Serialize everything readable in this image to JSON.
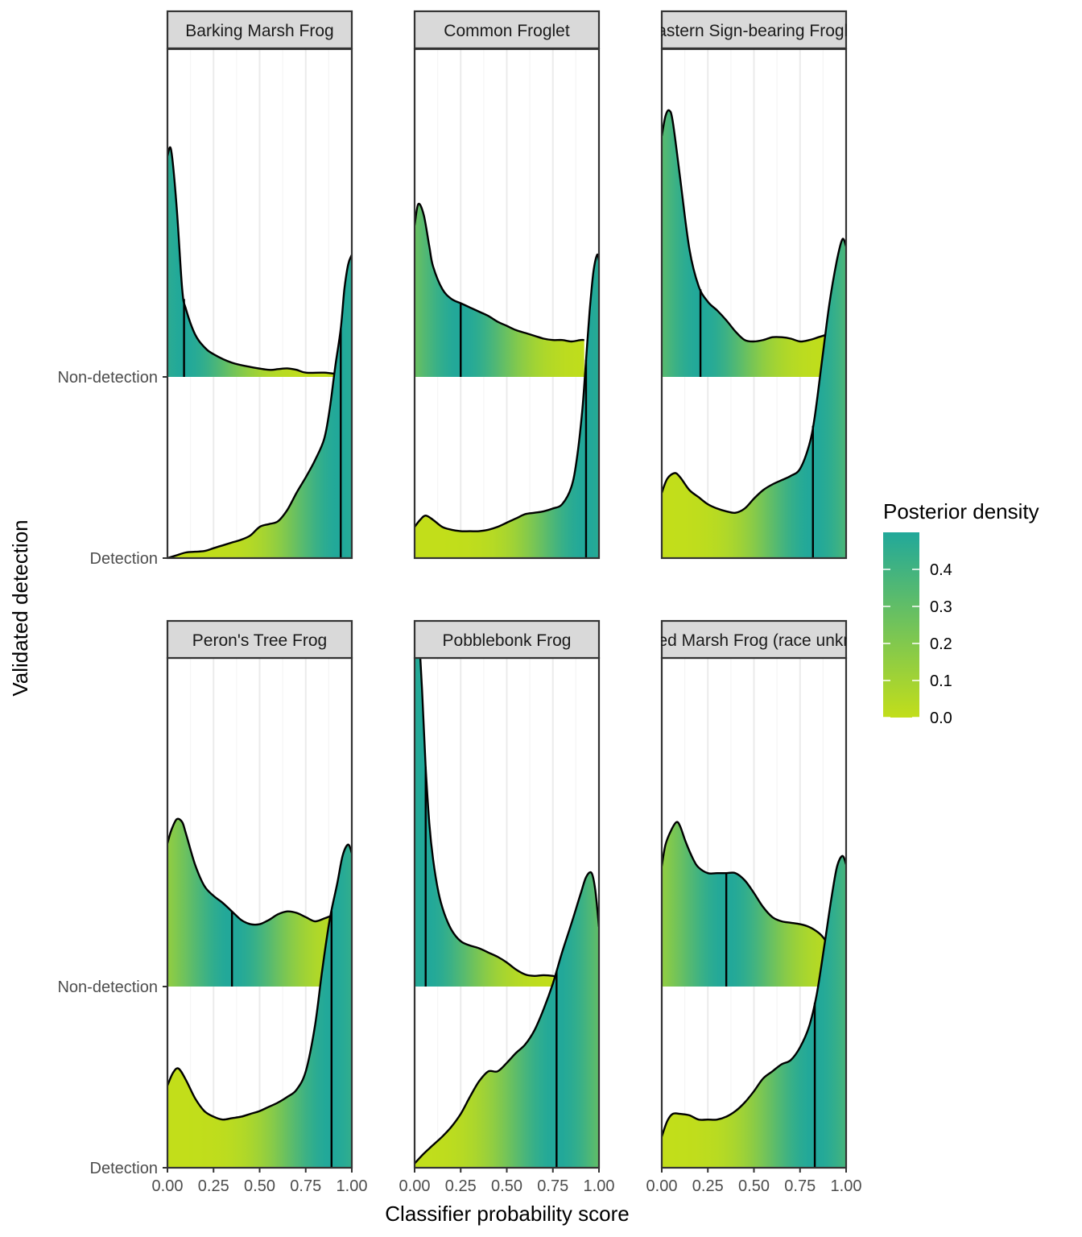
{
  "chart_data": {
    "type": "density_ridgeline_facets",
    "xlabel": "Classifier probability score",
    "ylabel": "Validated detection",
    "x_ticks": [
      "0.00",
      "0.25",
      "0.50",
      "0.75",
      "1.00"
    ],
    "x_tick_values": [
      0,
      0.25,
      0.5,
      0.75,
      1
    ],
    "xlim": [
      0,
      1
    ],
    "y_categories": [
      "Detection",
      "Non-detection"
    ],
    "grid": "vertical major and minor gridlines",
    "legend": {
      "title": "Posterior density",
      "placement": "right",
      "range": [
        0,
        0.5
      ],
      "ticks": [
        "0.0",
        "0.1",
        "0.2",
        "0.3",
        "0.4"
      ],
      "tick_values": [
        0,
        0.1,
        0.2,
        0.3,
        0.4
      ],
      "color_low": "#c2de1a",
      "color_high": "#21a89a"
    },
    "facets": [
      {
        "name": "Barking Marsh Frog",
        "ridges": [
          {
            "category": "Non-detection",
            "vline": 0.09,
            "x": [
              0,
              0.02,
              0.05,
              0.08,
              0.1,
              0.15,
              0.2,
              0.25,
              0.35,
              0.45,
              0.55,
              0.6,
              0.65,
              0.7,
              0.75,
              0.85,
              0.92
            ],
            "density": [
              1.56,
              1.6,
              1.2,
              0.62,
              0.48,
              0.3,
              0.21,
              0.16,
              0.1,
              0.07,
              0.05,
              0.055,
              0.06,
              0.05,
              0.03,
              0.03,
              0.02
            ]
          },
          {
            "category": "Detection",
            "vline": 0.94,
            "x": [
              0,
              0.05,
              0.1,
              0.15,
              0.2,
              0.25,
              0.3,
              0.35,
              0.4,
              0.45,
              0.5,
              0.55,
              0.6,
              0.65,
              0.7,
              0.75,
              0.8,
              0.85,
              0.88,
              0.91,
              0.94,
              0.96,
              0.98,
              1.0
            ],
            "density": [
              0.0,
              0.02,
              0.04,
              0.045,
              0.05,
              0.07,
              0.09,
              0.11,
              0.13,
              0.16,
              0.22,
              0.24,
              0.26,
              0.34,
              0.46,
              0.57,
              0.69,
              0.84,
              1.05,
              1.35,
              1.62,
              1.9,
              2.07,
              2.14
            ]
          }
        ]
      },
      {
        "name": "Common Froglet",
        "ridges": [
          {
            "category": "Non-detection",
            "vline": 0.25,
            "x": [
              0,
              0.02,
              0.05,
              0.08,
              0.1,
              0.15,
              0.2,
              0.25,
              0.3,
              0.35,
              0.4,
              0.45,
              0.5,
              0.55,
              0.6,
              0.65,
              0.7,
              0.75,
              0.8,
              0.85,
              0.9,
              0.92
            ],
            "density": [
              1.07,
              1.22,
              1.14,
              0.92,
              0.78,
              0.62,
              0.55,
              0.52,
              0.49,
              0.46,
              0.43,
              0.39,
              0.36,
              0.33,
              0.31,
              0.29,
              0.27,
              0.26,
              0.26,
              0.25,
              0.26,
              0.26
            ]
          },
          {
            "category": "Detection",
            "vline": 0.93,
            "x": [
              0,
              0.03,
              0.06,
              0.1,
              0.15,
              0.2,
              0.25,
              0.3,
              0.35,
              0.4,
              0.45,
              0.5,
              0.55,
              0.6,
              0.65,
              0.7,
              0.75,
              0.8,
              0.85,
              0.88,
              0.91,
              0.93,
              0.95,
              0.97,
              0.99,
              1.0
            ],
            "density": [
              0.22,
              0.27,
              0.3,
              0.27,
              0.22,
              0.2,
              0.19,
              0.19,
              0.19,
              0.2,
              0.22,
              0.25,
              0.28,
              0.31,
              0.32,
              0.33,
              0.35,
              0.38,
              0.5,
              0.7,
              1.05,
              1.4,
              1.75,
              2.02,
              2.14,
              2.1
            ]
          }
        ]
      },
      {
        "name": "Eastern Sign-bearing Froglet",
        "ridges": [
          {
            "category": "Non-detection",
            "vline": 0.21,
            "x": [
              0,
              0.02,
              0.04,
              0.06,
              0.1,
              0.15,
              0.2,
              0.25,
              0.3,
              0.35,
              0.4,
              0.45,
              0.5,
              0.55,
              0.6,
              0.65,
              0.7,
              0.75,
              0.8,
              0.85,
              0.9
            ],
            "density": [
              1.7,
              1.84,
              1.88,
              1.8,
              1.4,
              0.9,
              0.64,
              0.53,
              0.47,
              0.4,
              0.32,
              0.26,
              0.25,
              0.26,
              0.28,
              0.28,
              0.27,
              0.25,
              0.26,
              0.28,
              0.3
            ]
          },
          {
            "category": "Detection",
            "vline": 0.82,
            "x": [
              0,
              0.03,
              0.07,
              0.1,
              0.15,
              0.2,
              0.25,
              0.3,
              0.35,
              0.4,
              0.45,
              0.5,
              0.55,
              0.6,
              0.65,
              0.7,
              0.75,
              0.8,
              0.83,
              0.87,
              0.91,
              0.95,
              0.98,
              1.0
            ],
            "density": [
              0.46,
              0.56,
              0.6,
              0.57,
              0.48,
              0.43,
              0.38,
              0.35,
              0.33,
              0.32,
              0.35,
              0.42,
              0.48,
              0.52,
              0.55,
              0.58,
              0.63,
              0.8,
              1.0,
              1.4,
              1.8,
              2.1,
              2.25,
              2.2
            ]
          }
        ]
      },
      {
        "name": "Peron's Tree Frog",
        "ridges": [
          {
            "category": "Non-detection",
            "vline": 0.35,
            "x": [
              0,
              0.02,
              0.05,
              0.08,
              0.1,
              0.15,
              0.2,
              0.25,
              0.3,
              0.35,
              0.4,
              0.45,
              0.5,
              0.55,
              0.6,
              0.65,
              0.7,
              0.75,
              0.8,
              0.85,
              0.89
            ],
            "density": [
              1.01,
              1.1,
              1.18,
              1.16,
              1.08,
              0.86,
              0.71,
              0.64,
              0.59,
              0.53,
              0.47,
              0.44,
              0.44,
              0.47,
              0.51,
              0.53,
              0.52,
              0.49,
              0.46,
              0.48,
              0.5
            ]
          },
          {
            "category": "Detection",
            "vline": 0.89,
            "x": [
              0,
              0.03,
              0.06,
              0.1,
              0.15,
              0.2,
              0.25,
              0.3,
              0.35,
              0.4,
              0.45,
              0.5,
              0.55,
              0.6,
              0.65,
              0.7,
              0.75,
              0.8,
              0.84,
              0.88,
              0.92,
              0.95,
              0.98,
              1.0
            ],
            "density": [
              0.58,
              0.67,
              0.7,
              0.62,
              0.49,
              0.4,
              0.36,
              0.34,
              0.35,
              0.36,
              0.38,
              0.4,
              0.43,
              0.46,
              0.5,
              0.55,
              0.68,
              1.0,
              1.4,
              1.75,
              2.0,
              2.2,
              2.28,
              2.22
            ]
          }
        ]
      },
      {
        "name": "Pobblebonk Frog",
        "ridges": [
          {
            "category": "Non-detection",
            "vline": 0.06,
            "x": [
              0,
              0.02,
              0.04,
              0.06,
              0.08,
              0.1,
              0.13,
              0.16,
              0.2,
              0.25,
              0.3,
              0.35,
              0.4,
              0.45,
              0.5,
              0.55,
              0.6,
              0.65,
              0.7,
              0.75,
              0.8,
              0.85,
              0.9,
              1.0
            ],
            "density": [
              2.6,
              2.52,
              2.1,
              1.55,
              1.15,
              0.9,
              0.66,
              0.52,
              0.4,
              0.32,
              0.29,
              0.27,
              0.24,
              0.21,
              0.17,
              0.12,
              0.085,
              0.075,
              0.08,
              0.075,
              0.06,
              0.05,
              0.04,
              0.02
            ]
          },
          {
            "category": "Detection",
            "vline": 0.77,
            "x": [
              0,
              0.05,
              0.1,
              0.15,
              0.2,
              0.25,
              0.3,
              0.35,
              0.4,
              0.45,
              0.5,
              0.55,
              0.6,
              0.65,
              0.7,
              0.75,
              0.8,
              0.85,
              0.9,
              0.93,
              0.96,
              0.98,
              1.0
            ],
            "density": [
              0.03,
              0.1,
              0.16,
              0.22,
              0.29,
              0.38,
              0.5,
              0.61,
              0.68,
              0.68,
              0.74,
              0.81,
              0.87,
              0.97,
              1.12,
              1.3,
              1.52,
              1.72,
              1.93,
              2.05,
              2.08,
              1.96,
              1.7
            ]
          }
        ]
      },
      {
        "name": "Spotted Marsh Frog (race unknown)",
        "ridges": [
          {
            "category": "Non-detection",
            "vline": 0.35,
            "x": [
              0,
              0.02,
              0.05,
              0.08,
              0.1,
              0.13,
              0.17,
              0.2,
              0.25,
              0.3,
              0.35,
              0.4,
              0.45,
              0.5,
              0.55,
              0.6,
              0.65,
              0.7,
              0.75,
              0.8,
              0.85,
              0.88,
              0.9
            ],
            "density": [
              0.85,
              1.0,
              1.1,
              1.16,
              1.13,
              1.02,
              0.9,
              0.84,
              0.8,
              0.8,
              0.8,
              0.8,
              0.75,
              0.66,
              0.56,
              0.49,
              0.46,
              0.45,
              0.44,
              0.42,
              0.38,
              0.34,
              0.3
            ]
          },
          {
            "category": "Detection",
            "vline": 0.83,
            "x": [
              0,
              0.03,
              0.06,
              0.1,
              0.15,
              0.2,
              0.25,
              0.3,
              0.35,
              0.4,
              0.45,
              0.5,
              0.55,
              0.6,
              0.65,
              0.7,
              0.75,
              0.8,
              0.84,
              0.88,
              0.92,
              0.95,
              0.98,
              1.0
            ],
            "density": [
              0.22,
              0.33,
              0.38,
              0.38,
              0.37,
              0.34,
              0.34,
              0.34,
              0.36,
              0.4,
              0.46,
              0.54,
              0.63,
              0.68,
              0.73,
              0.76,
              0.85,
              1.0,
              1.22,
              1.55,
              1.9,
              2.12,
              2.2,
              2.14
            ]
          }
        ]
      }
    ]
  },
  "colors": {
    "strip_fill": "#d9d9d9",
    "panel_border": "#333333",
    "grid_major": "#ebebeb",
    "grid_minor": "#f5f5f5",
    "curve": "#000000"
  }
}
